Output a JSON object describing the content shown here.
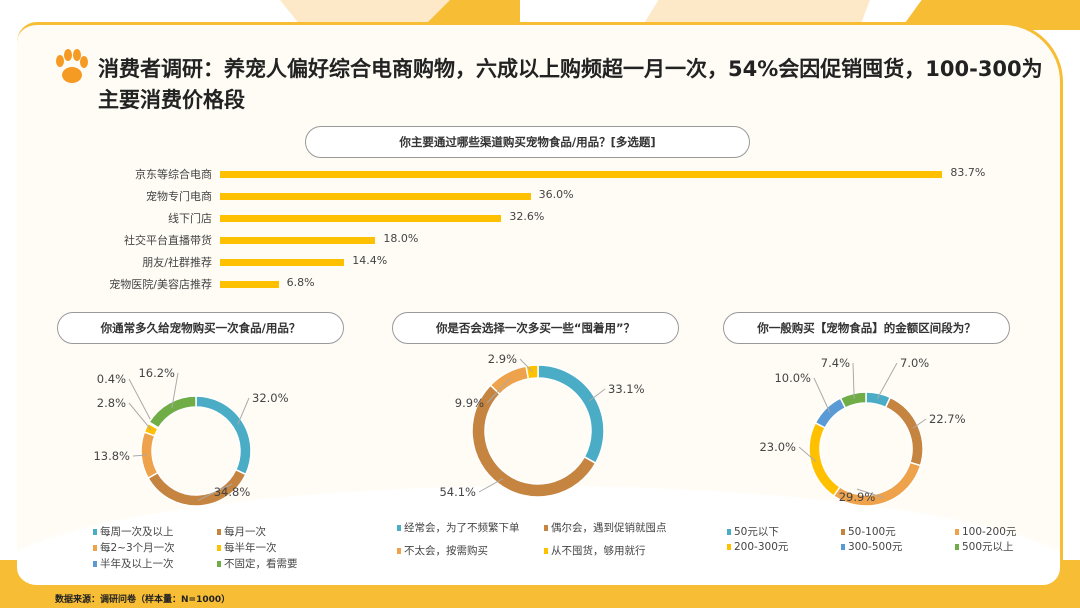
{
  "title": "消费者调研：养宠人偏好综合电商购物，六成以上购频超一月一次，54%会因促销囤货，100-300为主要消费价格段",
  "colors": {
    "teal": "#4bacc6",
    "brown": "#c5843f",
    "orange": "#eda24b",
    "yellow": "#ffc000",
    "blue": "#5b9bd5",
    "green": "#70ad47",
    "frame": "#f7bd35"
  },
  "source": "数据来源：调研问卷（样本量：N=1000）",
  "chart_data": [
    {
      "type": "bar",
      "title": "你主要通过哪些渠道购买宠物食品/用品？[多选题]",
      "categories": [
        "京东等综合电商",
        "宠物专门电商",
        "线下门店",
        "社交平台直播带货",
        "朋友/社群推荐",
        "宠物医院/美容店推荐"
      ],
      "values": [
        83.7,
        36.0,
        32.6,
        18.0,
        14.4,
        6.8
      ],
      "labels": [
        "83.7%",
        "36.0%",
        "32.6%",
        "18.0%",
        "14.4%",
        "6.8%"
      ]
    },
    {
      "type": "pie",
      "title": "你通常多久给宠物购买一次食品/用品？",
      "categories": [
        "每周一次及以上",
        "每月一次",
        "每2~3个月一次",
        "每半年一次",
        "半年及以上一次",
        "不固定，看需要"
      ],
      "values": [
        32.0,
        34.8,
        13.8,
        2.8,
        0.4,
        16.2
      ],
      "labels": [
        "32.0%",
        "34.8%",
        "13.8%",
        "2.8%",
        "0.4%",
        "16.2%"
      ],
      "colors": [
        "#4bacc6",
        "#c5843f",
        "#eda24b",
        "#ffc000",
        "#5b9bd5",
        "#70ad47"
      ]
    },
    {
      "type": "pie",
      "title": "你是否会选择一次多买一些“囤着用”？",
      "categories": [
        "经常会，为了不频繁下单",
        "偶尔会，遇到促销就囤点",
        "不太会，按需购买",
        "从不囤货，够用就行"
      ],
      "values": [
        33.1,
        54.1,
        9.9,
        2.9
      ],
      "labels": [
        "33.1%",
        "54.1%",
        "9.9%",
        "2.9%"
      ],
      "colors": [
        "#4bacc6",
        "#c5843f",
        "#eda24b",
        "#ffc000"
      ]
    },
    {
      "type": "pie",
      "title": "你一般购买【宠物食品】的金额区间段为？",
      "categories": [
        "50元以下",
        "50-100元",
        "100-200元",
        "200-300元",
        "300-500元",
        "500元以上"
      ],
      "values": [
        7.0,
        22.7,
        29.9,
        23.0,
        10.0,
        7.4
      ],
      "labels": [
        "7.0%",
        "22.7%",
        "29.9%",
        "23.0%",
        "10.0%",
        "7.4%"
      ],
      "colors": [
        "#4bacc6",
        "#c5843f",
        "#eda24b",
        "#ffc000",
        "#5b9bd5",
        "#70ad47"
      ]
    }
  ]
}
